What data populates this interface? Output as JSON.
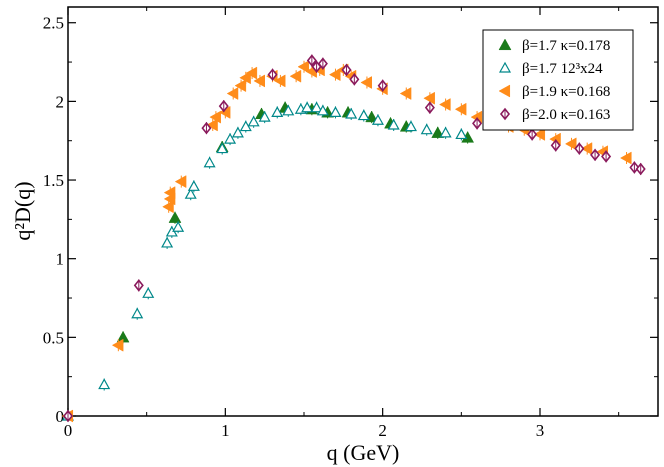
{
  "chart_data": {
    "type": "scatter",
    "xlabel": "q (GeV)",
    "ylabel": "q²D(q)",
    "xlim": [
      0,
      3.75
    ],
    "ylim": [
      0,
      2.6
    ],
    "x_ticks": [
      {
        "value": 0,
        "label": "0"
      },
      {
        "value": 1,
        "label": "1"
      },
      {
        "value": 2,
        "label": "2"
      },
      {
        "value": 3,
        "label": "3"
      }
    ],
    "y_ticks": [
      {
        "value": 0,
        "label": "0"
      },
      {
        "value": 0.5,
        "label": "0.5"
      },
      {
        "value": 1,
        "label": "1"
      },
      {
        "value": 1.5,
        "label": "1.5"
      },
      {
        "value": 2,
        "label": "2"
      },
      {
        "value": 2.5,
        "label": "2.5"
      }
    ],
    "grid": false,
    "legend_position": "top-right",
    "series": [
      {
        "name": "β=1.7 κ=0.178",
        "marker": "filled-triangle-up",
        "color": "#1a7a1a",
        "points": [
          [
            0.35,
            0.5
          ],
          [
            0.68,
            1.26
          ],
          [
            0.98,
            1.71
          ],
          [
            1.23,
            1.92
          ],
          [
            1.38,
            1.96
          ],
          [
            1.55,
            1.95
          ],
          [
            1.65,
            1.93
          ],
          [
            1.78,
            1.93
          ],
          [
            1.93,
            1.9
          ],
          [
            2.05,
            1.86
          ],
          [
            2.15,
            1.84
          ],
          [
            2.35,
            1.8
          ],
          [
            2.54,
            1.77
          ]
        ]
      },
      {
        "name": "β=1.7 12³x24",
        "marker": "open-triangle-up",
        "color": "#00888a",
        "points": [
          [
            0.0,
            0.0
          ],
          [
            0.23,
            0.2
          ],
          [
            0.44,
            0.65
          ],
          [
            0.51,
            0.78
          ],
          [
            0.63,
            1.1
          ],
          [
            0.66,
            1.17
          ],
          [
            0.7,
            1.2
          ],
          [
            0.78,
            1.41
          ],
          [
            0.8,
            1.46
          ],
          [
            0.9,
            1.61
          ],
          [
            0.98,
            1.7
          ],
          [
            1.03,
            1.76
          ],
          [
            1.08,
            1.8
          ],
          [
            1.13,
            1.84
          ],
          [
            1.18,
            1.87
          ],
          [
            1.25,
            1.9
          ],
          [
            1.33,
            1.93
          ],
          [
            1.4,
            1.94
          ],
          [
            1.48,
            1.95
          ],
          [
            1.52,
            1.96
          ],
          [
            1.58,
            1.96
          ],
          [
            1.62,
            1.94
          ],
          [
            1.7,
            1.93
          ],
          [
            1.8,
            1.92
          ],
          [
            1.88,
            1.91
          ],
          [
            1.97,
            1.88
          ],
          [
            2.07,
            1.85
          ],
          [
            2.18,
            1.84
          ],
          [
            2.28,
            1.82
          ],
          [
            2.4,
            1.8
          ],
          [
            2.5,
            1.79
          ]
        ]
      },
      {
        "name": "β=1.9 κ=0.168",
        "marker": "filled-triangle-left",
        "color": "#ff8c1a",
        "points": [
          [
            0.0,
            0.0
          ],
          [
            0.32,
            0.45
          ],
          [
            0.64,
            1.33
          ],
          [
            0.65,
            1.38
          ],
          [
            0.65,
            1.42
          ],
          [
            0.72,
            1.49
          ],
          [
            0.92,
            1.85
          ],
          [
            0.94,
            1.9
          ],
          [
            1.0,
            1.93
          ],
          [
            1.05,
            2.05
          ],
          [
            1.1,
            2.1
          ],
          [
            1.13,
            2.15
          ],
          [
            1.17,
            2.18
          ],
          [
            1.22,
            2.13
          ],
          [
            1.3,
            2.16
          ],
          [
            1.35,
            2.13
          ],
          [
            1.45,
            2.16
          ],
          [
            1.5,
            2.22
          ],
          [
            1.55,
            2.19
          ],
          [
            1.6,
            2.2
          ],
          [
            1.7,
            2.17
          ],
          [
            1.75,
            2.2
          ],
          [
            1.8,
            2.16
          ],
          [
            1.9,
            2.12
          ],
          [
            2.0,
            2.08
          ],
          [
            2.15,
            2.05
          ],
          [
            2.3,
            2.02
          ],
          [
            2.4,
            1.98
          ],
          [
            2.5,
            1.95
          ],
          [
            2.6,
            1.9
          ],
          [
            2.7,
            1.86
          ],
          [
            2.8,
            1.84
          ],
          [
            2.9,
            1.82
          ],
          [
            3.0,
            1.79
          ],
          [
            3.1,
            1.76
          ],
          [
            3.2,
            1.73
          ],
          [
            3.3,
            1.7
          ],
          [
            3.4,
            1.68
          ],
          [
            3.55,
            1.64
          ]
        ]
      },
      {
        "name": "β=2.0 κ=0.163",
        "marker": "diamond",
        "color": "#8a1a5c",
        "points": [
          [
            0.0,
            0.0
          ],
          [
            0.45,
            0.83
          ],
          [
            0.88,
            1.83
          ],
          [
            0.99,
            1.97
          ],
          [
            1.3,
            2.17
          ],
          [
            1.55,
            2.26
          ],
          [
            1.58,
            2.22
          ],
          [
            1.62,
            2.24
          ],
          [
            1.77,
            2.2
          ],
          [
            1.82,
            2.14
          ],
          [
            2.0,
            2.1
          ],
          [
            2.3,
            1.96
          ],
          [
            2.6,
            1.86
          ],
          [
            2.95,
            1.79
          ],
          [
            3.1,
            1.72
          ],
          [
            3.25,
            1.7
          ],
          [
            3.35,
            1.66
          ],
          [
            3.42,
            1.65
          ],
          [
            3.6,
            1.58
          ],
          [
            3.64,
            1.57
          ]
        ]
      }
    ]
  }
}
